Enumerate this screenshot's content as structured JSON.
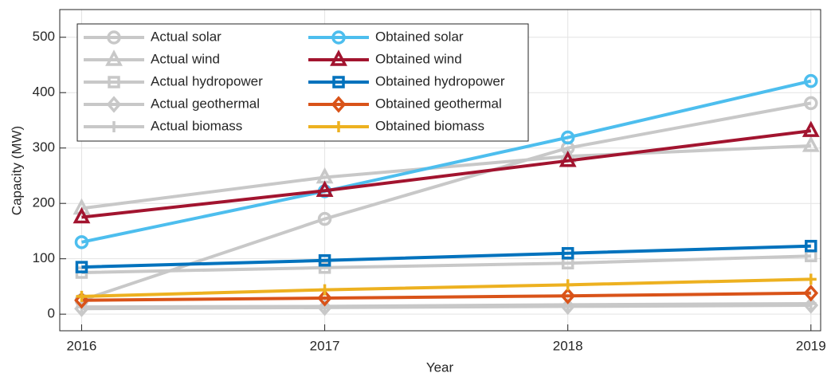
{
  "chart_data": {
    "type": "line",
    "x_label": "Year",
    "y_label": "Capacity (MW)",
    "x": [
      2016,
      2017,
      2018,
      2019
    ],
    "xlim": [
      2015.91,
      2019.04
    ],
    "xticks": [
      2016,
      2017,
      2018,
      2019
    ],
    "ylim": [
      -30,
      550
    ],
    "yticks": [
      0,
      100,
      200,
      300,
      400,
      500
    ],
    "grid": true,
    "legend": "upper left",
    "series": [
      {
        "name": "Actual solar",
        "color": "#c8c8c8",
        "marker": "circle",
        "values": [
          25,
          172,
          300,
          381
        ]
      },
      {
        "name": "Actual wind",
        "color": "#c8c8c8",
        "marker": "triangle",
        "values": [
          191,
          247,
          285,
          304
        ]
      },
      {
        "name": "Actual hydropower",
        "color": "#c8c8c8",
        "marker": "square",
        "values": [
          75,
          84,
          92,
          105
        ]
      },
      {
        "name": "Actual geothermal",
        "color": "#c8c8c8",
        "marker": "diamond",
        "values": [
          10,
          12,
          14,
          16
        ]
      },
      {
        "name": "Actual biomass",
        "color": "#c8c8c8",
        "marker": "plus",
        "values": [
          13,
          14,
          17,
          19
        ]
      },
      {
        "name": "Obtained solar",
        "color": "#4dbeee",
        "marker": "circle",
        "values": [
          130,
          222,
          319,
          421
        ]
      },
      {
        "name": "Obtained wind",
        "color": "#a2142f",
        "marker": "triangle",
        "values": [
          175,
          223,
          277,
          331
        ]
      },
      {
        "name": "Obtained hydropower",
        "color": "#0072bd",
        "marker": "square",
        "values": [
          85,
          97,
          110,
          123
        ]
      },
      {
        "name": "Obtained geothermal",
        "color": "#d95319",
        "marker": "diamond",
        "values": [
          25,
          29,
          33,
          38
        ]
      },
      {
        "name": "Obtained biomass",
        "color": "#edb120",
        "marker": "plus",
        "values": [
          32,
          44,
          53,
          63
        ]
      }
    ]
  }
}
